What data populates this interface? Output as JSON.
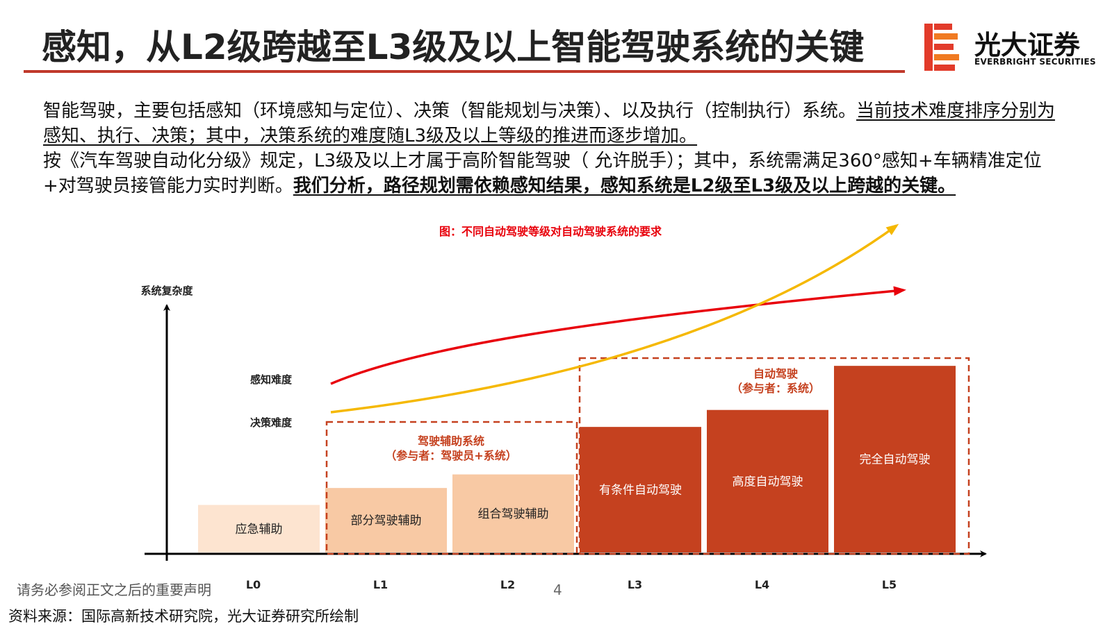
{
  "header": {
    "title": "感知，从L2级跨越至L3级及以上智能驾驶系统的关键",
    "logo_cn": "光大证券",
    "logo_en": "EVERBRIGHT SECURITIES"
  },
  "body": {
    "p1_plain": "智能驾驶，主要包括感知（环境感知与定位）、决策（智能规划与决策）、以及执行（控制执行）系统。",
    "p1_underlined": "当前技术难度排序分别为感知、执行、决策；其中，决策系统的难度随L3级及以上等级的推进而逐步增加。",
    "p2_plain": "按《汽车驾驶自动化分级》规定，L3级及以上才属于高阶智能驾驶（ 允许脱手）；其中，系统需满足360°感知+车辆精准定位+对驾驶员接管能力实时判断。",
    "p2_bold_underlined": "我们分析，路径规划需依赖感知结果，感知系统是L2级至L3级及以上跨越的关键。"
  },
  "diagram": {
    "caption": "图：不同自动驾驶等级对自动驾驶系统的要求",
    "y_axis_label": "系统复杂度",
    "curve_labels": {
      "perception": "感知难度",
      "decision": "决策难度"
    },
    "groups": [
      {
        "title": "驾驶辅助系统",
        "subtitle": "（参与者：驾驶员+系统）"
      },
      {
        "title": "自动驾驶",
        "subtitle": "（参与者：系统）"
      }
    ],
    "levels": [
      {
        "level": "L0",
        "name": "应急辅助",
        "complexity": 0.14
      },
      {
        "level": "L1",
        "name": "部分驾驶辅助",
        "complexity": 0.19
      },
      {
        "level": "L2",
        "name": "组合驾驶辅助",
        "complexity": 0.23
      },
      {
        "level": "L3",
        "name": "有条件自动驾驶",
        "complexity": 0.37
      },
      {
        "level": "L4",
        "name": "高度自动驾驶",
        "complexity": 0.42
      },
      {
        "level": "L5",
        "name": "完全自动驾驶",
        "complexity": 0.55
      }
    ],
    "colors": {
      "perception_curve": "#e8000b",
      "decision_curve": "#f5b800",
      "light_bar": "#fde4d0",
      "mid_bar": "#f8c9a4",
      "dark_bar": "#c5411f",
      "group_border": "#c5411f"
    }
  },
  "footer": {
    "disclaimer": "请务必参阅正文之后的重要声明",
    "page_number": "4",
    "source": "资料来源：国际高新技术研究院，光大证券研究所绘制"
  }
}
